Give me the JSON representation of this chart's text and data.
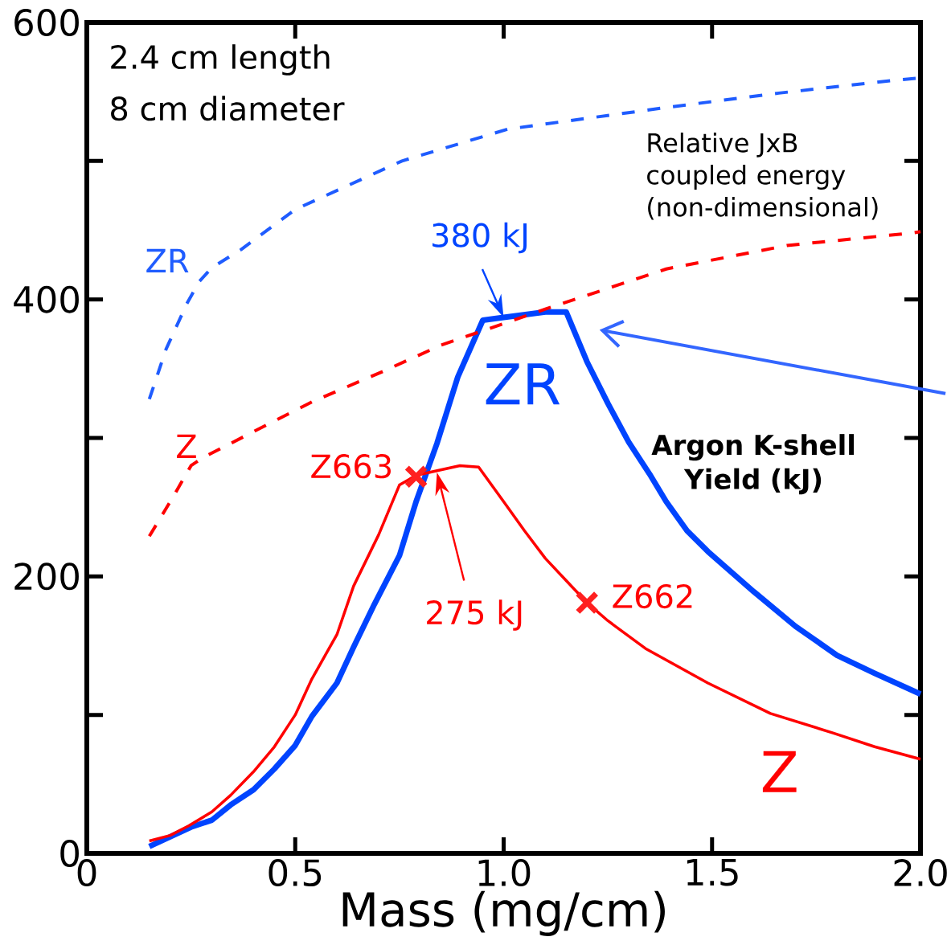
{
  "chart_data": {
    "type": "line",
    "xlabel": "Mass (mg/cm)",
    "xlim": [
      0,
      2
    ],
    "ylim": [
      0,
      600
    ],
    "xticks": [
      0,
      0.5,
      {
        "value": 1,
        "label": "1.0"
      },
      1.5,
      {
        "value": 2,
        "label": "2.0"
      }
    ],
    "yticks": [
      0,
      200,
      400,
      600
    ],
    "grid": false,
    "legend": false,
    "series": [
      {
        "name": "ZR",
        "color": "#0044ff",
        "line_style": "solid",
        "x": [
          0.15,
          0.2,
          0.25,
          0.3,
          0.345,
          0.4,
          0.45,
          0.5,
          0.54,
          0.6,
          0.64,
          0.69,
          0.75,
          0.79,
          0.84,
          0.89,
          0.95,
          1.0,
          1.1,
          1.15,
          1.2,
          1.25,
          1.3,
          1.35,
          1.39,
          1.44,
          1.49,
          1.6,
          1.7,
          1.8,
          1.89,
          2.0
        ],
        "values": [
          5,
          12,
          19,
          24,
          35,
          46,
          61,
          78,
          99,
          123,
          149,
          180,
          215,
          254,
          296,
          344,
          385,
          387,
          391,
          391,
          355,
          325,
          297,
          274,
          254,
          233,
          218,
          189,
          164,
          143,
          130,
          115
        ]
      },
      {
        "name": "Z",
        "color": "#ff0000",
        "line_style": "solid",
        "x": [
          0.15,
          0.2,
          0.245,
          0.3,
          0.345,
          0.4,
          0.45,
          0.5,
          0.54,
          0.6,
          0.64,
          0.7,
          0.75,
          0.79,
          0.895,
          0.94,
          1.0,
          1.05,
          1.1,
          1.15,
          1.2,
          1.25,
          1.34,
          1.49,
          1.64,
          1.79,
          1.89,
          2.0
        ],
        "values": [
          9,
          13,
          20,
          30,
          42,
          59,
          77,
          100,
          126,
          158,
          193,
          230,
          266,
          273,
          280,
          279,
          254,
          233,
          213,
          197,
          181,
          168,
          148,
          123,
          101,
          87,
          77,
          68
        ]
      },
      {
        "name": "ZR",
        "color": "#1f5cff",
        "line_style": "dashed",
        "x": [
          0.15,
          0.19,
          0.24,
          0.27,
          0.3,
          0.37,
          0.5,
          0.756,
          1.01,
          1.4,
          1.66,
          1.93,
          2.0
        ],
        "values": [
          328,
          364,
          397,
          413,
          423,
          436,
          465,
          500,
          523,
          539,
          549,
          558,
          560
        ]
      },
      {
        "name": "Z",
        "color": "#ff0000",
        "line_style": "dashed",
        "x": [
          0.15,
          0.21,
          0.25,
          0.28,
          0.39,
          0.54,
          0.71,
          0.85,
          1.1,
          1.39,
          1.68,
          1.98,
          2.0
        ],
        "values": [
          229,
          259,
          280,
          286,
          303,
          326,
          348,
          367,
          393,
          422,
          439,
          448,
          449
        ]
      },
      {
        "type": "scatter",
        "marker": "cross",
        "color": "#ff2020",
        "x": [
          0.79,
          1.2
        ],
        "values": [
          272,
          181
        ]
      }
    ],
    "annotations": [
      "2.4 cm length",
      "8 cm diameter",
      "Relative JxB coupled energy (non-dimensional)",
      "Argon K-shell Yield (kJ)",
      {
        "text": "380 kJ",
        "x": 1.0,
        "y": 387
      },
      "275 kJ",
      {
        "text": "Z663",
        "x": 0.79,
        "y": 272
      },
      {
        "text": "Z662",
        "x": 1.2,
        "y": 181
      }
    ]
  }
}
